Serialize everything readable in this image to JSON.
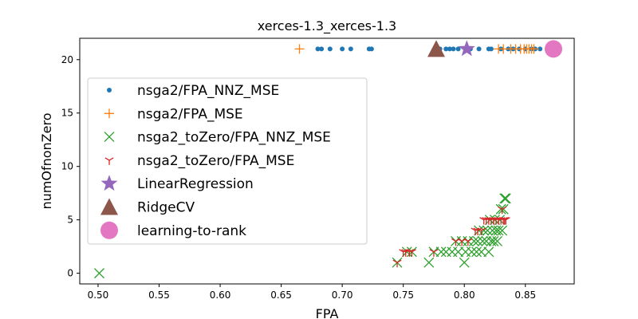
{
  "chart_data": {
    "type": "scatter",
    "title": "xerces-1.3_xerces-1.3",
    "xlabel": "FPA",
    "ylabel": "numOfnonZero",
    "xlim": [
      0.485,
      0.89
    ],
    "ylim": [
      -1.0,
      22.0
    ],
    "xticks": [
      0.5,
      0.55,
      0.6,
      0.65,
      0.7,
      0.75,
      0.8,
      0.85
    ],
    "xtick_labels": [
      "0.50",
      "0.55",
      "0.60",
      "0.65",
      "0.70",
      "0.75",
      "0.80",
      "0.85"
    ],
    "yticks": [
      0,
      5,
      10,
      15,
      20
    ],
    "ytick_labels": [
      "0",
      "5",
      "10",
      "15",
      "20"
    ],
    "grid": false,
    "legend_position": "center-left",
    "series": [
      {
        "name": "nsga2/FPA_NNZ_MSE",
        "marker": "dot",
        "color": "#1f77b4",
        "points": [
          [
            0.68,
            21
          ],
          [
            0.683,
            21
          ],
          [
            0.69,
            21
          ],
          [
            0.7,
            21
          ],
          [
            0.707,
            21
          ],
          [
            0.722,
            21
          ],
          [
            0.724,
            21
          ],
          [
            0.78,
            21
          ],
          [
            0.785,
            21
          ],
          [
            0.788,
            21
          ],
          [
            0.791,
            21
          ],
          [
            0.795,
            21
          ],
          [
            0.805,
            21
          ],
          [
            0.812,
            21
          ],
          [
            0.82,
            21
          ],
          [
            0.822,
            21
          ],
          [
            0.83,
            21
          ],
          [
            0.836,
            21
          ],
          [
            0.84,
            21
          ],
          [
            0.845,
            21
          ],
          [
            0.85,
            21
          ],
          [
            0.855,
            21
          ],
          [
            0.858,
            21
          ],
          [
            0.862,
            21
          ]
        ]
      },
      {
        "name": "nsga2/FPA_MSE",
        "marker": "plus",
        "color": "#ff7f0e",
        "points": [
          [
            0.665,
            21
          ],
          [
            0.828,
            21
          ],
          [
            0.832,
            21
          ],
          [
            0.838,
            21
          ],
          [
            0.842,
            21
          ],
          [
            0.846,
            21
          ],
          [
            0.849,
            21
          ],
          [
            0.851,
            21
          ],
          [
            0.853,
            21
          ],
          [
            0.855,
            21
          ],
          [
            0.857,
            21
          ]
        ]
      },
      {
        "name": "nsga2_toZero/FPA_NNZ_MSE",
        "marker": "x",
        "color": "#2ca02c",
        "points": [
          [
            0.501,
            0
          ],
          [
            0.745,
            1
          ],
          [
            0.753,
            2
          ],
          [
            0.757,
            2
          ],
          [
            0.771,
            1
          ],
          [
            0.775,
            2
          ],
          [
            0.781,
            2
          ],
          [
            0.785,
            2
          ],
          [
            0.79,
            2
          ],
          [
            0.793,
            3
          ],
          [
            0.795,
            2
          ],
          [
            0.798,
            3
          ],
          [
            0.8,
            1
          ],
          [
            0.801,
            2
          ],
          [
            0.803,
            3
          ],
          [
            0.806,
            2
          ],
          [
            0.808,
            3
          ],
          [
            0.81,
            2
          ],
          [
            0.811,
            3
          ],
          [
            0.812,
            4
          ],
          [
            0.814,
            2
          ],
          [
            0.815,
            3
          ],
          [
            0.816,
            4
          ],
          [
            0.818,
            3
          ],
          [
            0.819,
            4
          ],
          [
            0.82,
            2
          ],
          [
            0.821,
            5
          ],
          [
            0.822,
            3
          ],
          [
            0.823,
            4
          ],
          [
            0.824,
            3
          ],
          [
            0.825,
            5
          ],
          [
            0.826,
            4
          ],
          [
            0.827,
            3
          ],
          [
            0.828,
            4
          ],
          [
            0.829,
            5
          ],
          [
            0.83,
            6
          ],
          [
            0.831,
            4
          ],
          [
            0.832,
            6
          ],
          [
            0.833,
            7
          ],
          [
            0.834,
            7
          ]
        ]
      },
      {
        "name": "nsga2_toZero/FPA_MSE",
        "marker": "tri_down",
        "color": "#d62728",
        "points": [
          [
            0.745,
            1
          ],
          [
            0.75,
            2
          ],
          [
            0.752,
            2
          ],
          [
            0.755,
            2
          ],
          [
            0.757,
            2
          ],
          [
            0.775,
            2
          ],
          [
            0.793,
            3
          ],
          [
            0.798,
            3
          ],
          [
            0.803,
            3
          ],
          [
            0.809,
            4
          ],
          [
            0.811,
            4
          ],
          [
            0.814,
            4
          ],
          [
            0.816,
            5
          ],
          [
            0.818,
            5
          ],
          [
            0.82,
            5
          ],
          [
            0.822,
            5
          ],
          [
            0.824,
            5
          ],
          [
            0.826,
            5
          ],
          [
            0.828,
            5
          ],
          [
            0.83,
            5
          ],
          [
            0.831,
            6
          ],
          [
            0.832,
            5
          ],
          [
            0.833,
            5
          ],
          [
            0.834,
            5
          ]
        ]
      },
      {
        "name": "LinearRegression",
        "marker": "star",
        "color": "#9467bd",
        "points": [
          [
            0.802,
            21
          ]
        ]
      },
      {
        "name": "RidgeCV",
        "marker": "triangle",
        "color": "#8c564b",
        "points": [
          [
            0.777,
            21
          ]
        ]
      },
      {
        "name": "learning-to-rank",
        "marker": "circle",
        "color": "#e377c2",
        "points": [
          [
            0.873,
            21
          ]
        ]
      }
    ]
  }
}
